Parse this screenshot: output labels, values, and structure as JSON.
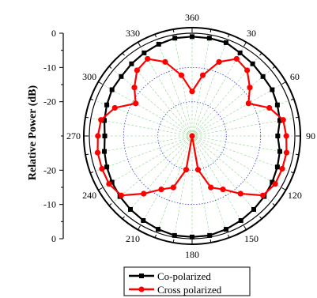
{
  "chart_data": {
    "type": "line",
    "subtype": "polar",
    "title": "",
    "ylabel": "Relative Power (dB)",
    "radial_range": [
      -30,
      0
    ],
    "radial_tick_labels": [
      "0",
      "-10",
      "-20",
      "-20",
      "-10",
      "0"
    ],
    "angle_tick_labels": [
      "360",
      "30",
      "60",
      "90",
      "120",
      "150",
      "180",
      "210",
      "240",
      "270",
      "300",
      "330"
    ],
    "angle_ticks_deg": [
      0,
      30,
      60,
      90,
      120,
      150,
      180,
      210,
      240,
      270,
      300,
      330
    ],
    "grid": true,
    "legend_position": "bottom",
    "series": [
      {
        "name": "Co-polarized",
        "color": "#000000",
        "marker": "square",
        "angles_deg": [
          0,
          10,
          20,
          30,
          40,
          50,
          60,
          70,
          80,
          90,
          100,
          110,
          120,
          130,
          140,
          150,
          160,
          170,
          180,
          190,
          200,
          210,
          220,
          230,
          240,
          250,
          260,
          270,
          280,
          290,
          300,
          310,
          320,
          330,
          340,
          350
        ],
        "values": [
          -1,
          -1,
          -1,
          -2,
          -2.5,
          -3,
          -3,
          -3.5,
          -4,
          -5,
          -4,
          -3.5,
          -3,
          -2.5,
          -2,
          -1.5,
          -1,
          -0.5,
          -0.5,
          -0.5,
          -1,
          -1.5,
          -2,
          -2.5,
          -3,
          -3.5,
          -4,
          -4.5,
          -4,
          -3.5,
          -3,
          -3,
          -2.5,
          -2,
          -1.5,
          -1
        ]
      },
      {
        "name": "Cross polarized",
        "color": "#ff0000",
        "marker": "circle",
        "angles_deg": [
          0,
          10,
          20,
          30,
          40,
          50,
          60,
          70,
          80,
          90,
          100,
          110,
          120,
          130,
          140,
          150,
          160,
          170,
          180,
          190,
          200,
          210,
          220,
          230,
          240,
          250,
          260,
          270,
          280,
          290,
          300,
          310,
          320,
          330,
          340,
          350
        ],
        "values": [
          -17,
          -12,
          -7,
          -4,
          -5,
          -8,
          -11,
          -6,
          -3,
          -2.5,
          -2,
          -2,
          -2,
          -3,
          -8,
          -12,
          -14,
          -20,
          -30,
          -20,
          -14,
          -12,
          -8,
          -3,
          -2,
          -2,
          -2,
          -2.5,
          -3,
          -6,
          -11,
          -8,
          -5,
          -4,
          -7,
          -12
        ]
      }
    ]
  }
}
